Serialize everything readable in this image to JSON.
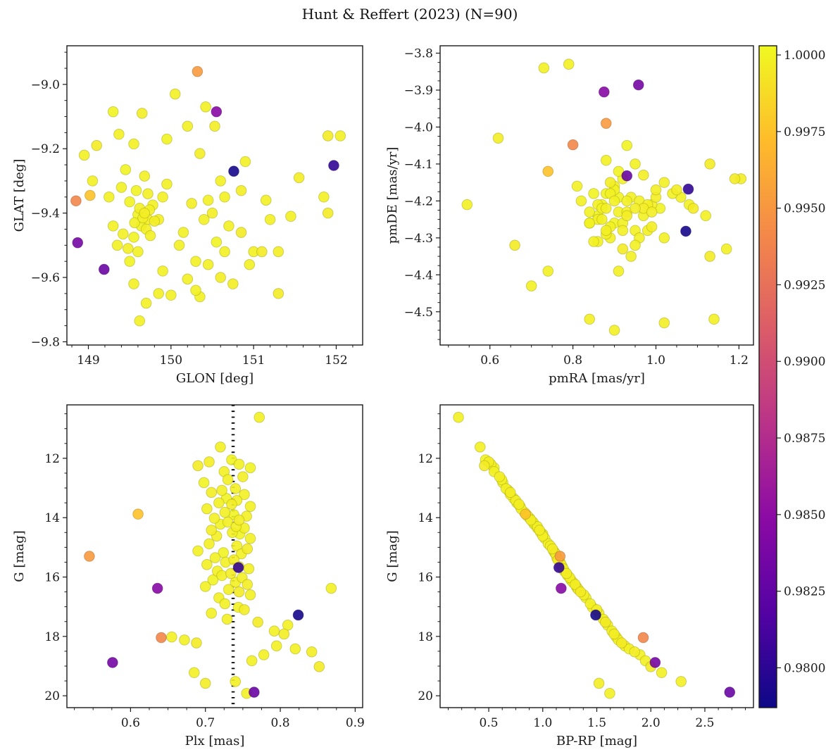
{
  "title": "Hunt & Reffert (2023) (N=90)",
  "chart_data": {
    "type": "scatter",
    "title": "Hunt & Reffert (2023) (N=90)",
    "n_members": 90,
    "colorbar": {
      "label": "",
      "vmin": 0.9787,
      "vmax": 1.0003,
      "ticks": [
        1.0,
        0.9975,
        0.995,
        0.9925,
        0.99,
        0.9875,
        0.985,
        0.9825,
        0.98
      ],
      "tick_labels": [
        "1.0000",
        "0.9975",
        "0.9950",
        "0.9925",
        "0.9900",
        "0.9875",
        "0.9850",
        "0.9825",
        "0.9800"
      ],
      "colormap": "plasma",
      "stops": [
        "#0d0887",
        "#5402a3",
        "#8b0aa5",
        "#b93289",
        "#db5c68",
        "#f48849",
        "#febc2a",
        "#f0f921"
      ]
    },
    "panels": [
      {
        "id": "glon-glat",
        "pos": "tl",
        "xkey": "glon",
        "ykey": "glat",
        "xlabel": "GLON [deg]",
        "ylabel": "GLAT [deg]",
        "xlim": [
          148.74,
          152.32
        ],
        "ylim": [
          -9.81,
          -8.88
        ],
        "xticks": [
          149,
          150,
          151,
          152
        ],
        "xtick_labels": [
          "149",
          "150",
          "151",
          "152"
        ],
        "yticks": [
          -9.0,
          -9.2,
          -9.4,
          -9.6,
          -9.8
        ],
        "ytick_labels": [
          "−9.0",
          "−9.2",
          "−9.4",
          "−9.6",
          "−9.8"
        ],
        "xminor": 0.2,
        "yminor": 0.05
      },
      {
        "id": "pmra-pmde",
        "pos": "tr",
        "xkey": "pmra",
        "ykey": "pmde",
        "xlabel": "pmRA [mas/yr]",
        "ylabel": "pmDE [mas/yr]",
        "xlim": [
          0.48,
          1.235
        ],
        "ylim": [
          -4.59,
          -3.78
        ],
        "xticks": [
          0.6,
          0.8,
          1.0,
          1.2
        ],
        "xtick_labels": [
          "0.6",
          "0.8",
          "1.0",
          "1.2"
        ],
        "yticks": [
          -3.8,
          -3.9,
          -4.0,
          -4.1,
          -4.2,
          -4.3,
          -4.4,
          -4.5
        ],
        "ytick_labels": [
          "−3.8",
          "−3.9",
          "−4.0",
          "−4.1",
          "−4.2",
          "−4.3",
          "−4.4",
          "−4.5"
        ],
        "xminor": 0.05,
        "yminor": 0.025
      },
      {
        "id": "plx-g",
        "pos": "bl",
        "xkey": "plx",
        "ykey": "g",
        "xlabel": "Plx [mas]",
        "ylabel": "G [mag]",
        "xlim": [
          0.515,
          0.91
        ],
        "ylim": [
          20.4,
          10.2
        ],
        "xticks": [
          0.6,
          0.7,
          0.8,
          0.9
        ],
        "xtick_labels": [
          "0.6",
          "0.7",
          "0.8",
          "0.9"
        ],
        "yticks": [
          12,
          14,
          16,
          18,
          20
        ],
        "ytick_labels": [
          "12",
          "14",
          "16",
          "18",
          "20"
        ],
        "xminor": 0.025,
        "yminor": 0.5,
        "vline": {
          "x": 0.737,
          "color": "#000000",
          "style": "dotted"
        }
      },
      {
        "id": "bprp-g",
        "pos": "br",
        "xkey": "bprp",
        "ykey": "g",
        "xlabel": "BP-RP [mag]",
        "ylabel": "G [mag]",
        "xlim": [
          0.05,
          2.95
        ],
        "ylim": [
          20.4,
          10.2
        ],
        "xticks": [
          0.5,
          1.0,
          1.5,
          2.0,
          2.5
        ],
        "xtick_labels": [
          "0.5",
          "1.0",
          "1.5",
          "2.0",
          "2.5"
        ],
        "yticks": [
          12,
          14,
          16,
          18,
          20
        ],
        "ytick_labels": [
          "12",
          "14",
          "16",
          "18",
          "20"
        ],
        "xminor": 0.125,
        "yminor": 0.5
      }
    ],
    "columns": [
      "glon",
      "glat",
      "pmra",
      "pmde",
      "plx",
      "g",
      "bprp",
      "p"
    ],
    "stars": [
      [
        150.32,
        -8.96,
        0.88,
        -3.99,
        0.545,
        15.3,
        1.16,
        0.9952
      ],
      [
        150.55,
        -9.085,
        0.875,
        -3.905,
        0.636,
        16.38,
        1.17,
        0.9846
      ],
      [
        150.76,
        -9.27,
        1.072,
        -4.282,
        0.824,
        17.28,
        1.49,
        0.9791
      ],
      [
        151.97,
        -9.252,
        1.078,
        -4.168,
        0.744,
        15.68,
        1.15,
        0.9803
      ],
      [
        148.85,
        -9.362,
        0.8,
        -4.048,
        0.641,
        18.04,
        1.93,
        0.994
      ],
      [
        148.87,
        -9.492,
        0.958,
        -3.886,
        0.576,
        18.88,
        2.04,
        0.9836
      ],
      [
        149.19,
        -9.575,
        0.93,
        -4.132,
        0.765,
        19.88,
        2.73,
        0.9829
      ],
      [
        149.62,
        -9.735,
        0.86,
        -4.21,
        0.772,
        10.62,
        0.22,
        0.9999
      ],
      [
        150.05,
        -9.03,
        0.95,
        -4.1,
        0.72,
        11.62,
        0.42,
        0.9998
      ],
      [
        149.3,
        -9.085,
        0.88,
        -4.18,
        0.735,
        12.05,
        0.47,
        1.0
      ],
      [
        150.53,
        -9.13,
        0.97,
        -4.22,
        0.705,
        12.12,
        0.5,
        0.9997
      ],
      [
        149.37,
        -9.155,
        0.84,
        -4.26,
        0.745,
        12.2,
        0.52,
        0.9999
      ],
      [
        151.9,
        -9.16,
        1.13,
        -4.1,
        0.69,
        12.25,
        0.46,
        0.9996
      ],
      [
        149.95,
        -9.17,
        0.93,
        -4.05,
        0.76,
        12.32,
        0.55,
        1.0
      ],
      [
        149.55,
        -9.185,
        0.9,
        -4.16,
        0.725,
        12.45,
        0.55,
        0.9999
      ],
      [
        150.35,
        -9.215,
        1.0,
        -4.19,
        0.75,
        12.62,
        0.6,
        0.9997
      ],
      [
        150.9,
        -9.24,
        0.86,
        -4.31,
        0.73,
        12.72,
        0.62,
        0.9999
      ],
      [
        149.45,
        -9.265,
        0.92,
        -4.14,
        0.698,
        12.82,
        0.63,
        1.0
      ],
      [
        149.68,
        -9.285,
        0.88,
        -4.22,
        0.74,
        13.02,
        0.66,
        0.9998
      ],
      [
        150.6,
        -9.3,
        0.95,
        -4.28,
        0.722,
        13.08,
        0.68,
        0.9999
      ],
      [
        151.55,
        -9.29,
        1.05,
        -4.17,
        0.708,
        13.15,
        0.7,
        0.9997
      ],
      [
        149.25,
        -9.35,
        0.82,
        -4.2,
        0.752,
        13.22,
        0.7,
        0.9999
      ],
      [
        149.58,
        -9.33,
        0.91,
        -4.12,
        0.728,
        13.35,
        0.73,
        1.0
      ],
      [
        149.72,
        -9.34,
        0.87,
        -4.25,
        0.742,
        13.42,
        0.75,
        0.9998
      ],
      [
        149.9,
        -9.35,
        0.94,
        -4.19,
        0.718,
        13.5,
        0.76,
        0.9999
      ],
      [
        150.25,
        -9.37,
        0.99,
        -4.23,
        0.735,
        13.55,
        0.78,
        0.9997
      ],
      [
        150.45,
        -9.36,
        0.89,
        -4.3,
        0.76,
        13.62,
        0.79,
        0.9999
      ],
      [
        151.15,
        -9.36,
        1.02,
        -4.15,
        0.702,
        13.7,
        0.8,
        0.9998
      ],
      [
        151.85,
        -9.35,
        1.08,
        -4.21,
        0.726,
        13.82,
        0.83,
        0.9999
      ],
      [
        149.5,
        -9.365,
        0.85,
        -4.18,
        0.738,
        13.9,
        0.85,
        1.0
      ],
      [
        149.62,
        -9.385,
        0.92,
        -4.28,
        0.755,
        13.95,
        0.86,
        0.9998
      ],
      [
        149.78,
        -9.375,
        0.88,
        -4.09,
        0.712,
        14.02,
        0.88,
        0.9999
      ],
      [
        149.68,
        -9.4,
        0.95,
        -4.22,
        0.745,
        14.08,
        0.89,
        0.9997
      ],
      [
        149.74,
        -9.39,
        0.9,
        -4.17,
        0.73,
        14.15,
        0.91,
        0.9999
      ],
      [
        149.6,
        -9.405,
        0.86,
        -4.24,
        0.72,
        14.22,
        0.92,
        1.0
      ],
      [
        149.66,
        -9.415,
        0.93,
        -4.2,
        0.741,
        14.3,
        0.95,
        0.9998
      ],
      [
        149.72,
        -9.42,
        0.89,
        -4.27,
        0.752,
        14.35,
        0.95,
        0.9999
      ],
      [
        149.8,
        -9.425,
        0.97,
        -4.13,
        0.708,
        14.42,
        0.97,
        0.9997
      ],
      [
        149.56,
        -9.43,
        0.84,
        -4.23,
        0.736,
        14.5,
        0.98,
        0.9999
      ],
      [
        149.64,
        -9.44,
        0.91,
        -4.19,
        0.746,
        14.55,
        1.0,
        1.0
      ],
      [
        149.7,
        -9.45,
        0.88,
        -4.29,
        0.715,
        14.62,
        1.0,
        0.9998
      ],
      [
        149.3,
        -9.44,
        0.81,
        -4.16,
        0.76,
        14.7,
        1.02,
        0.9999
      ],
      [
        150.15,
        -9.46,
        0.99,
        -4.21,
        0.705,
        14.88,
        1.05,
        0.9999
      ],
      [
        150.7,
        -9.44,
        1.04,
        -4.18,
        0.742,
        14.95,
        1.07,
        0.9998
      ],
      [
        150.85,
        -9.46,
        0.92,
        -4.33,
        0.756,
        15.05,
        1.09,
        0.9996
      ],
      [
        149.42,
        -9.465,
        0.87,
        -4.22,
        0.69,
        15.12,
        1.1,
        0.9999
      ],
      [
        149.55,
        -9.475,
        0.9,
        -4.26,
        0.724,
        15.18,
        1.11,
        1.0
      ],
      [
        149.75,
        -9.47,
        0.96,
        -4.2,
        0.748,
        15.22,
        1.12,
        0.9998
      ],
      [
        149.35,
        -9.5,
        0.85,
        -4.31,
        0.713,
        15.35,
        1.13,
        0.9999
      ],
      [
        149.48,
        -9.51,
        0.93,
        -4.24,
        0.738,
        15.42,
        1.14,
        0.9997
      ],
      [
        149.6,
        -9.52,
        0.89,
        -4.18,
        0.727,
        15.5,
        1.16,
        0.9999
      ],
      [
        150.1,
        -9.5,
        0.98,
        -4.28,
        0.702,
        15.58,
        1.17,
        0.9998
      ],
      [
        150.55,
        -9.49,
        1.01,
        -4.22,
        0.745,
        15.65,
        1.18,
        1.0
      ],
      [
        150.65,
        -9.52,
        0.94,
        -4.35,
        0.758,
        15.72,
        1.19,
        0.9998
      ],
      [
        151.0,
        -9.52,
        1.06,
        -4.19,
        0.716,
        15.8,
        1.2,
        0.9999
      ],
      [
        151.3,
        -9.52,
        0.99,
        -4.27,
        0.734,
        15.88,
        1.22,
        0.9997
      ],
      [
        150.3,
        -9.55,
        0.91,
        -4.23,
        0.722,
        15.95,
        1.23,
        0.9999
      ],
      [
        150.45,
        -9.56,
        0.96,
        -4.3,
        0.749,
        16.02,
        1.25,
        0.9998
      ],
      [
        149.5,
        -9.55,
        0.87,
        -4.21,
        0.71,
        16.1,
        1.26,
        1.0
      ],
      [
        149.9,
        -9.58,
        0.92,
        -4.26,
        0.74,
        16.18,
        1.28,
        0.9999
      ],
      [
        150.6,
        -9.6,
        1.0,
        -4.17,
        0.756,
        16.25,
        1.3,
        0.9997
      ],
      [
        149.55,
        -9.62,
        0.86,
        -4.25,
        0.7,
        16.32,
        1.31,
        0.9999
      ],
      [
        150.2,
        -9.605,
        0.95,
        -4.32,
        0.731,
        16.42,
        1.33,
        0.9998
      ],
      [
        151.3,
        -9.65,
        1.09,
        -4.22,
        0.745,
        16.5,
        1.35,
        0.9996
      ],
      [
        150.0,
        -9.655,
        0.9,
        -4.2,
        0.868,
        16.38,
        1.32,
        0.9999
      ],
      [
        149.7,
        -9.68,
        0.88,
        -4.28,
        0.76,
        16.6,
        1.38,
        0.9998
      ],
      [
        150.35,
        -9.66,
        0.97,
        -4.24,
        0.718,
        16.7,
        1.4,
        0.9999
      ],
      [
        149.85,
        -9.42,
        0.93,
        -4.23,
        0.726,
        16.9,
        1.44,
        0.9998
      ],
      [
        150.4,
        -9.42,
        1.02,
        -4.3,
        0.744,
        17.02,
        1.46,
        0.9999
      ],
      [
        150.5,
        -9.4,
        0.89,
        -4.15,
        0.752,
        17.1,
        1.5,
        0.9997
      ],
      [
        151.2,
        -9.42,
        1.12,
        -4.24,
        0.708,
        17.22,
        1.52,
        0.9999
      ],
      [
        151.45,
        -9.41,
        0.98,
        -4.21,
        0.729,
        17.42,
        1.56,
        0.9998
      ],
      [
        151.9,
        -9.4,
        1.19,
        -4.14,
        0.77,
        17.52,
        1.58,
        0.9996
      ],
      [
        149.4,
        -9.32,
        0.84,
        -4.26,
        0.81,
        17.62,
        1.6,
        0.9999
      ],
      [
        149.95,
        -9.31,
        0.91,
        -4.39,
        0.792,
        17.82,
        1.64,
        0.9998
      ],
      [
        150.85,
        -9.33,
        1.205,
        -4.14,
        0.805,
        17.92,
        1.66,
        0.9997
      ],
      [
        149.05,
        -9.3,
        0.74,
        -4.39,
        0.655,
        18.02,
        1.68,
        0.9999
      ],
      [
        148.95,
        -9.22,
        0.7,
        -4.43,
        0.672,
        18.12,
        1.7,
        0.9998
      ],
      [
        149.1,
        -9.19,
        0.66,
        -4.32,
        0.688,
        18.22,
        1.73,
        0.9996
      ],
      [
        152.05,
        -9.16,
        1.17,
        -4.33,
        0.795,
        18.32,
        1.76,
        0.9999
      ],
      [
        150.95,
        -9.56,
        1.14,
        -4.52,
        0.82,
        18.42,
        1.8,
        0.9998
      ],
      [
        150.75,
        -9.62,
        1.02,
        -4.53,
        0.842,
        18.52,
        1.85,
        0.9997
      ],
      [
        150.3,
        -9.64,
        0.9,
        -4.55,
        0.778,
        18.62,
        1.9,
        0.9999
      ],
      [
        149.85,
        -9.65,
        0.84,
        -4.52,
        0.762,
        18.82,
        1.95,
        0.9998
      ],
      [
        151.1,
        -9.52,
        1.13,
        -4.35,
        0.852,
        19.02,
        2.0,
        0.9996
      ],
      [
        150.65,
        -9.35,
        0.73,
        -3.84,
        0.685,
        19.22,
        2.1,
        0.9999
      ],
      [
        150.2,
        -9.13,
        0.79,
        -3.83,
        0.74,
        19.52,
        2.28,
        0.9998
      ],
      [
        149.65,
        -9.09,
        0.62,
        -4.03,
        0.7,
        19.58,
        1.52,
        0.9997
      ],
      [
        150.42,
        -9.07,
        0.545,
        -4.21,
        0.755,
        19.92,
        1.62,
        0.9999
      ],
      [
        149.02,
        -9.345,
        0.74,
        -4.12,
        0.61,
        13.88,
        0.84,
        0.9975
      ]
    ]
  }
}
